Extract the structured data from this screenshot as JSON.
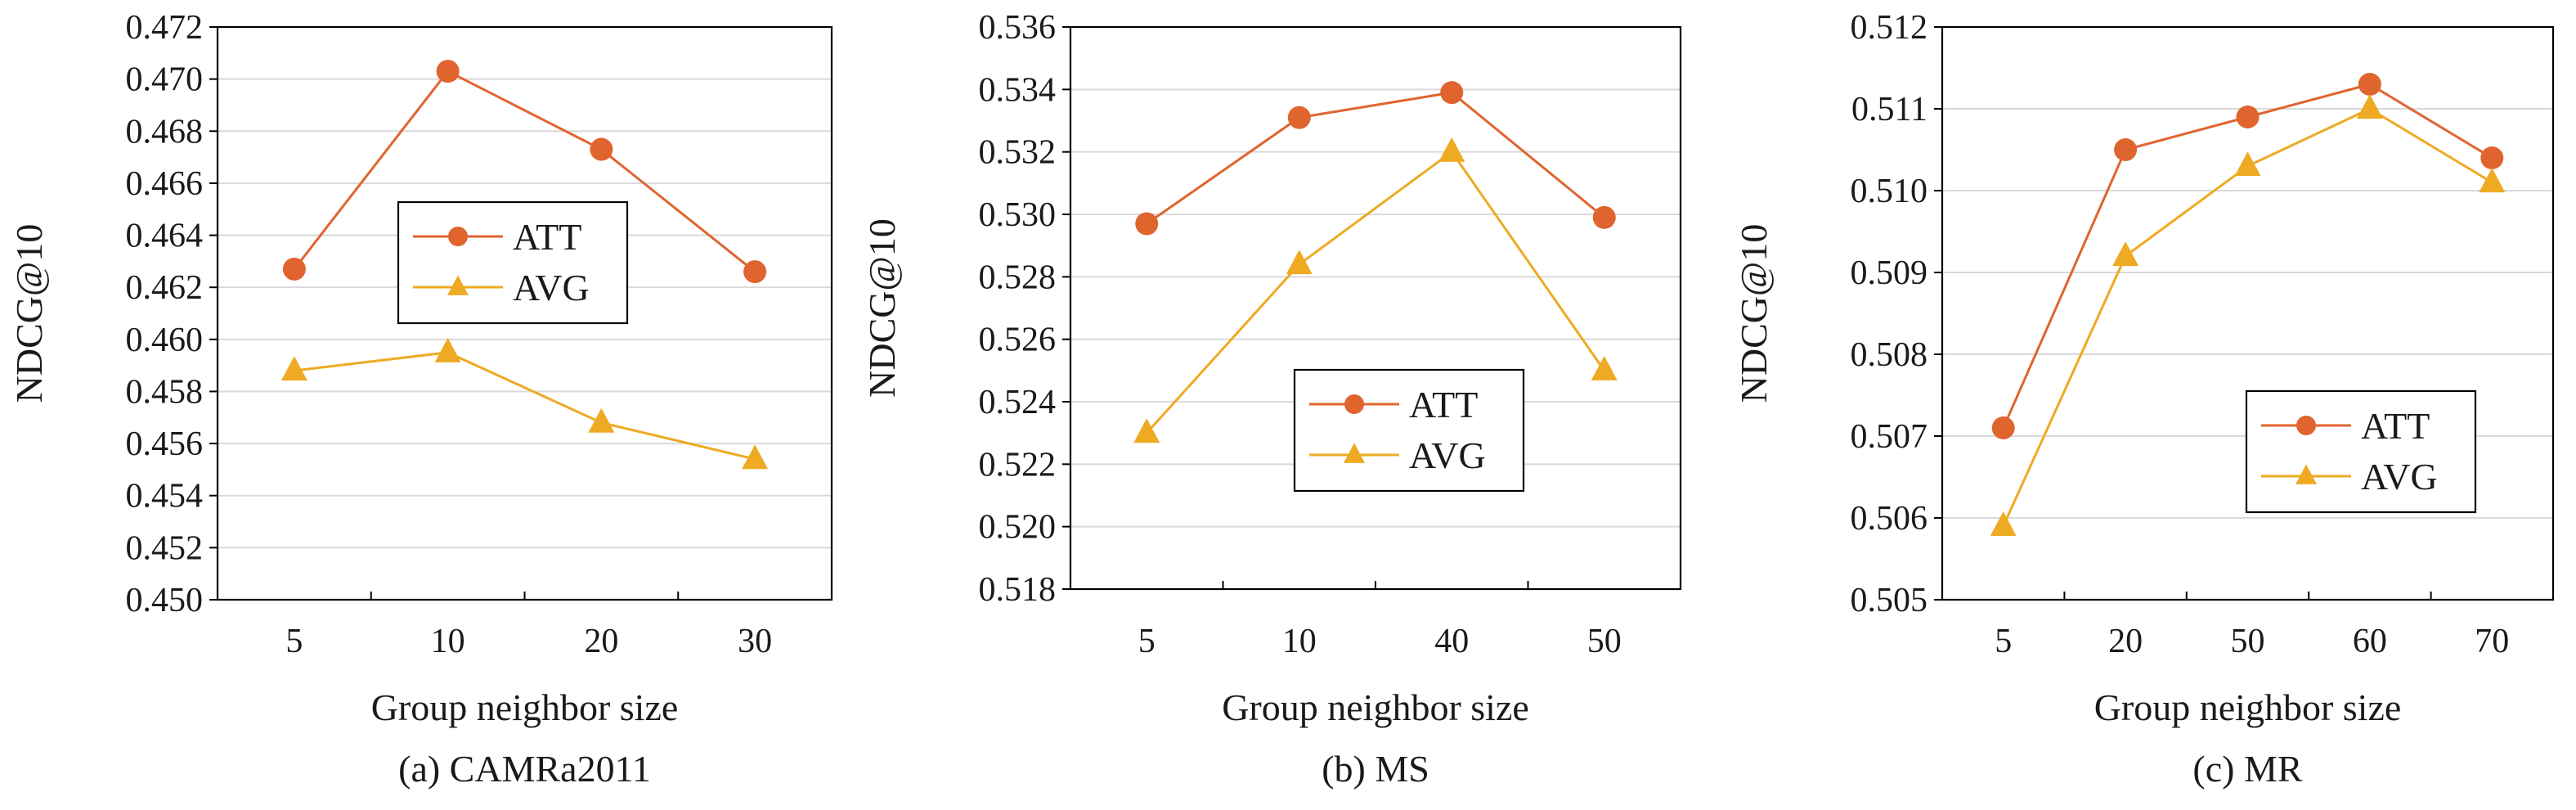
{
  "colors": {
    "att": "#E0642E",
    "avg": "#EEAA22",
    "grid": "#D9D9D9",
    "axis": "#000000"
  },
  "chart_data": [
    {
      "type": "line",
      "caption": "(a) CAMRa2011",
      "xlabel": "Group neighbor size",
      "ylabel": "NDCG@10",
      "categories": [
        "5",
        "10",
        "20",
        "30"
      ],
      "ylim": [
        0.45,
        0.472
      ],
      "yticks": [
        "0.450",
        "0.452",
        "0.454",
        "0.456",
        "0.458",
        "0.460",
        "0.462",
        "0.464",
        "0.466",
        "0.468",
        "0.470",
        "0.472"
      ],
      "grid": true,
      "legend_position": "center",
      "series": [
        {
          "name": "ATT",
          "marker": "circle",
          "values": [
            0.4627,
            0.4703,
            0.4673,
            0.4626
          ]
        },
        {
          "name": "AVG",
          "marker": "triangle",
          "values": [
            0.4588,
            0.4595,
            0.4568,
            0.4554
          ]
        }
      ]
    },
    {
      "type": "line",
      "caption": "(b) MS",
      "xlabel": "Group neighbor size",
      "ylabel": "NDCG@10",
      "categories": [
        "5",
        "10",
        "40",
        "50"
      ],
      "ylim": [
        0.518,
        0.536
      ],
      "yticks": [
        "0.518",
        "0.520",
        "0.522",
        "0.524",
        "0.526",
        "0.528",
        "0.530",
        "0.532",
        "0.534",
        "0.536"
      ],
      "grid": true,
      "legend_position": "bottom-center",
      "series": [
        {
          "name": "ATT",
          "marker": "circle",
          "values": [
            0.5297,
            0.5331,
            0.5339,
            0.5299
          ]
        },
        {
          "name": "AVG",
          "marker": "triangle",
          "values": [
            0.523,
            0.5284,
            0.532,
            0.525
          ]
        }
      ]
    },
    {
      "type": "line",
      "caption": "(c) MR",
      "xlabel": "Group neighbor size",
      "ylabel": "NDCG@10",
      "categories": [
        "5",
        "20",
        "50",
        "60",
        "70"
      ],
      "ylim": [
        0.505,
        0.512
      ],
      "yticks": [
        "0.505",
        "0.506",
        "0.507",
        "0.508",
        "0.509",
        "0.510",
        "0.511",
        "0.512"
      ],
      "grid": true,
      "legend_position": "bottom-right",
      "series": [
        {
          "name": "ATT",
          "marker": "circle",
          "values": [
            0.5071,
            0.5105,
            0.5109,
            0.5113,
            0.5104
          ]
        },
        {
          "name": "AVG",
          "marker": "triangle",
          "values": [
            0.5059,
            0.5092,
            0.5103,
            0.511,
            0.5101
          ]
        }
      ]
    }
  ]
}
